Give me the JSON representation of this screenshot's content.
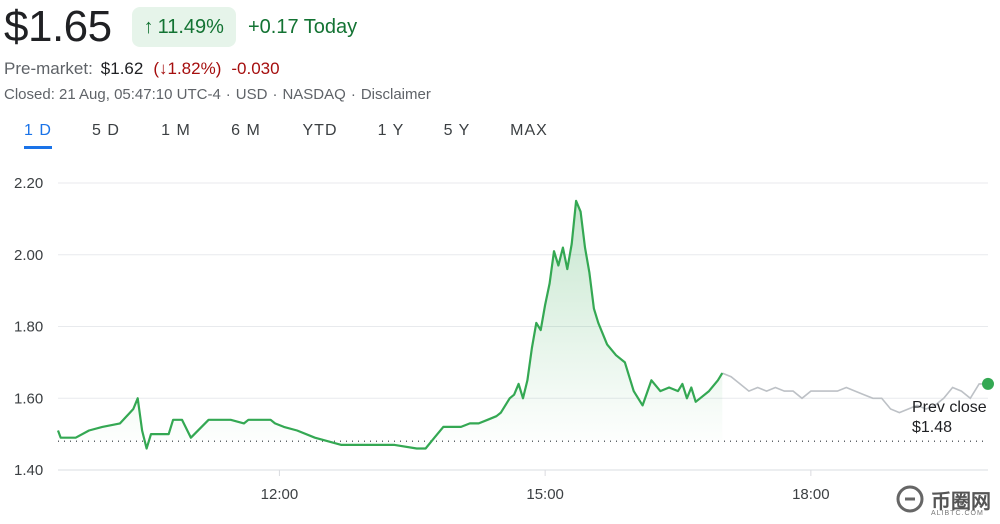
{
  "quote": {
    "price": "$1.65",
    "change_pct": "11.49%",
    "change_abs": "+0.17 Today"
  },
  "premarket": {
    "label": "Pre-market:",
    "price": "$1.62",
    "change_pct": "(↓1.82%)",
    "change_abs": "-0.030"
  },
  "closed_info": {
    "closed": "Closed: 21 Aug, 05:47:10 UTC-4",
    "currency": "USD",
    "exchange": "NASDAQ",
    "disclaimer": "Disclaimer"
  },
  "tabs": [
    "1 D",
    "5 D",
    "1 M",
    "6 M",
    "YTD",
    "1 Y",
    "5 Y",
    "MAX"
  ],
  "active_tab": "1 D",
  "colors": {
    "up_green": "#137333",
    "line_green": "#34a853",
    "after_hours_gray": "#bdc1c6",
    "down_red": "#a50e0e",
    "accent_blue": "#1a73e8"
  },
  "icons": {
    "up_arrow": "arrow-up-icon",
    "down_arrow": "arrow-down-icon",
    "watermark": "alibtc-logo-icon"
  },
  "watermark": {
    "text": "币圈网",
    "sub": "ALIBTC.COM"
  },
  "chart_data": {
    "type": "line",
    "title": "",
    "xlabel": "",
    "ylabel": "",
    "ylim": [
      1.4,
      2.2
    ],
    "yticks": [
      "2.20",
      "2.00",
      "1.80",
      "1.60",
      "1.40"
    ],
    "xticks": [
      "12:00",
      "15:00",
      "18:00"
    ],
    "xrange_hours": [
      9.5,
      20.0
    ],
    "prev_close": {
      "label": "Prev close",
      "value_label": "$1.48",
      "value": 1.48
    },
    "grid": true,
    "series": [
      {
        "segment": "regular",
        "color": "#34a853",
        "x": [
          9.5,
          9.53,
          9.7,
          9.85,
          10.0,
          10.2,
          10.35,
          10.4,
          10.45,
          10.5,
          10.55,
          10.65,
          10.75,
          10.8,
          10.9,
          11.0,
          11.2,
          11.45,
          11.6,
          11.65,
          11.75,
          11.85,
          11.9,
          11.95,
          12.05,
          12.2,
          12.4,
          12.7,
          13.0,
          13.3,
          13.55,
          13.65,
          13.75,
          13.85,
          13.95,
          14.05,
          14.15,
          14.25,
          14.35,
          14.45,
          14.5,
          14.55,
          14.6,
          14.65,
          14.7,
          14.75,
          14.8,
          14.85,
          14.9,
          14.95,
          15.0,
          15.05,
          15.1,
          15.15,
          15.2,
          15.25,
          15.3,
          15.35,
          15.4,
          15.45,
          15.5,
          15.55,
          15.6,
          15.7,
          15.8,
          15.9,
          16.0,
          16.1,
          16.2,
          16.3,
          16.4,
          16.5,
          16.55,
          16.6,
          16.65,
          16.7,
          16.75,
          16.85,
          16.95,
          17.0
        ],
        "y": [
          1.51,
          1.49,
          1.49,
          1.51,
          1.52,
          1.53,
          1.57,
          1.6,
          1.51,
          1.46,
          1.5,
          1.5,
          1.5,
          1.54,
          1.54,
          1.49,
          1.54,
          1.54,
          1.53,
          1.54,
          1.54,
          1.54,
          1.54,
          1.53,
          1.52,
          1.51,
          1.49,
          1.47,
          1.47,
          1.47,
          1.46,
          1.46,
          1.49,
          1.52,
          1.52,
          1.52,
          1.53,
          1.53,
          1.54,
          1.55,
          1.56,
          1.58,
          1.6,
          1.61,
          1.64,
          1.6,
          1.65,
          1.74,
          1.81,
          1.79,
          1.86,
          1.92,
          2.01,
          1.97,
          2.02,
          1.96,
          2.03,
          2.15,
          2.12,
          2.02,
          1.95,
          1.85,
          1.81,
          1.75,
          1.72,
          1.7,
          1.62,
          1.58,
          1.65,
          1.62,
          1.63,
          1.62,
          1.64,
          1.6,
          1.63,
          1.59,
          1.6,
          1.62,
          1.65,
          1.67
        ]
      },
      {
        "segment": "after-hours",
        "color": "#bdc1c6",
        "x": [
          17.0,
          17.1,
          17.2,
          17.3,
          17.4,
          17.5,
          17.6,
          17.7,
          17.8,
          17.9,
          18.0,
          18.1,
          18.2,
          18.3,
          18.4,
          18.5,
          18.6,
          18.7,
          18.8,
          18.9,
          19.0,
          19.1,
          19.2,
          19.3,
          19.4,
          19.5,
          19.6,
          19.7,
          19.8,
          19.9,
          20.0
        ],
        "y": [
          1.67,
          1.66,
          1.64,
          1.62,
          1.63,
          1.62,
          1.63,
          1.62,
          1.62,
          1.6,
          1.62,
          1.62,
          1.62,
          1.62,
          1.63,
          1.62,
          1.61,
          1.6,
          1.6,
          1.57,
          1.56,
          1.57,
          1.58,
          1.57,
          1.58,
          1.6,
          1.63,
          1.62,
          1.6,
          1.64,
          1.64
        ]
      }
    ],
    "last_point_marker": {
      "x": 20.0,
      "y": 1.64
    }
  }
}
